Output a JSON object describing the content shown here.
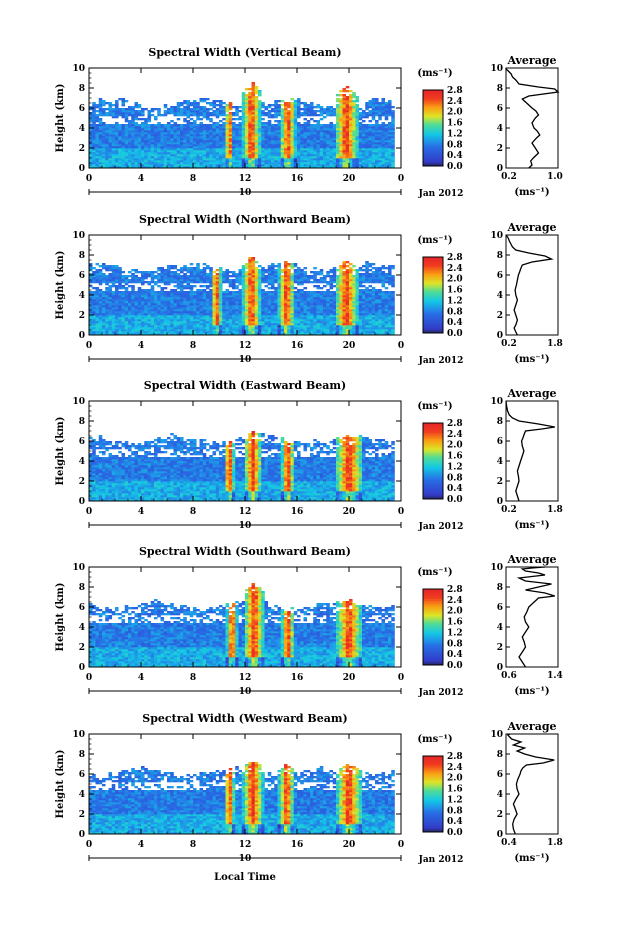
{
  "figure": {
    "xlabel": "Local Time",
    "date_label": "Jan 2012",
    "day_label": "10",
    "colorbar_unit_label": "(ms⁻¹)",
    "colorbar_ticks": [
      "0.0",
      "0.4",
      "0.8",
      "1.2",
      "1.6",
      "2.0",
      "2.4",
      "2.8"
    ],
    "profile_unit_label": "(ms⁻¹)"
  },
  "chart_data": [
    {
      "type": "heatmap",
      "title": "Spectral Width (Vertical Beam)",
      "ylabel": "Height (km)",
      "x_ticks": [
        "0",
        "4",
        "8",
        "12",
        "16",
        "20",
        "0"
      ],
      "y_ticks": [
        "0",
        "2",
        "4",
        "6",
        "8",
        "10"
      ],
      "xlim": [
        0,
        24
      ],
      "ylim": [
        0,
        10
      ],
      "colorscale_range": [
        0,
        2.8
      ],
      "storms": [
        {
          "t": 10.8,
          "h": 3.5,
          "w": 0.3
        },
        {
          "t": 12.5,
          "h": 8.8,
          "w": 0.7
        },
        {
          "t": 15.3,
          "h": 6.2,
          "w": 0.6
        },
        {
          "t": 19.8,
          "h": 8.2,
          "w": 0.9
        }
      ],
      "top_km": 6.5
    },
    {
      "type": "heatmap",
      "title": "Spectral Width (Northward Beam)",
      "ylabel": "Height (km)",
      "x_ticks": [
        "0",
        "4",
        "8",
        "12",
        "16",
        "20",
        "0"
      ],
      "y_ticks": [
        "0",
        "2",
        "4",
        "6",
        "8",
        "10"
      ],
      "xlim": [
        0,
        24
      ],
      "ylim": [
        0,
        10
      ],
      "colorscale_range": [
        0,
        2.8
      ],
      "storms": [
        {
          "t": 9.8,
          "h": 3.5,
          "w": 0.4
        },
        {
          "t": 12.5,
          "h": 8.0,
          "w": 0.7
        },
        {
          "t": 15.2,
          "h": 4.5,
          "w": 0.6
        },
        {
          "t": 19.8,
          "h": 7.5,
          "w": 0.9
        }
      ],
      "top_km": 6.8
    },
    {
      "type": "heatmap",
      "title": "Spectral Width (Eastward Beam)",
      "ylabel": "Height (km)",
      "x_ticks": [
        "0",
        "4",
        "8",
        "12",
        "16",
        "20",
        "0"
      ],
      "y_ticks": [
        "0",
        "2",
        "4",
        "6",
        "8",
        "10"
      ],
      "xlim": [
        0,
        24
      ],
      "ylim": [
        0,
        10
      ],
      "colorscale_range": [
        0,
        2.8
      ],
      "storms": [
        {
          "t": 10.8,
          "h": 3.0,
          "w": 0.4
        },
        {
          "t": 12.6,
          "h": 7.0,
          "w": 0.7
        },
        {
          "t": 15.3,
          "h": 4.3,
          "w": 0.5
        },
        {
          "t": 20.0,
          "h": 6.5,
          "w": 1.1
        }
      ],
      "top_km": 6.2
    },
    {
      "type": "heatmap",
      "title": "Spectral Width (Southward Beam)",
      "ylabel": "Height (km)",
      "x_ticks": [
        "0",
        "4",
        "8",
        "12",
        "16",
        "20",
        "0"
      ],
      "y_ticks": [
        "0",
        "2",
        "4",
        "6",
        "8",
        "10"
      ],
      "xlim": [
        0,
        24
      ],
      "ylim": [
        0,
        10
      ],
      "colorscale_range": [
        0,
        2.8
      ],
      "storms": [
        {
          "t": 11.0,
          "h": 3.5,
          "w": 0.4
        },
        {
          "t": 12.7,
          "h": 8.5,
          "w": 0.8
        },
        {
          "t": 15.3,
          "h": 5.5,
          "w": 0.5
        },
        {
          "t": 20.0,
          "h": 7.0,
          "w": 1.0
        }
      ],
      "top_km": 6.2
    },
    {
      "type": "heatmap",
      "title": "Spectral Width (Westward Beam)",
      "ylabel": "Height (km)",
      "x_ticks": [
        "0",
        "4",
        "8",
        "12",
        "16",
        "20",
        "0"
      ],
      "y_ticks": [
        "0",
        "2",
        "4",
        "6",
        "8",
        "10"
      ],
      "xlim": [
        0,
        24
      ],
      "ylim": [
        0,
        10
      ],
      "colorscale_range": [
        0,
        2.8
      ],
      "storms": [
        {
          "t": 10.8,
          "h": 4.0,
          "w": 0.4
        },
        {
          "t": 12.6,
          "h": 7.5,
          "w": 0.8
        },
        {
          "t": 15.2,
          "h": 7.2,
          "w": 0.6
        },
        {
          "t": 20.0,
          "h": 7.2,
          "w": 1.0
        }
      ],
      "top_km": 6.2
    },
    {
      "type": "line",
      "title": "Average",
      "x_ticks": [
        "0.2",
        "1.0"
      ],
      "xlim": [
        0.2,
        1.0
      ],
      "ylim": [
        0,
        10
      ],
      "y_ticks": [
        "0",
        "2",
        "4",
        "6",
        "8",
        "10"
      ],
      "x": [
        0.55,
        0.6,
        0.58,
        0.62,
        0.7,
        0.65,
        0.6,
        0.67,
        0.72,
        0.68,
        0.63,
        0.6,
        0.65,
        0.7,
        0.66,
        0.6,
        0.55,
        0.5,
        0.45,
        0.55,
        1.0,
        0.95,
        0.7,
        0.4,
        0.35,
        0.3,
        0.28,
        0.25,
        0.22,
        0.2,
        0.2
      ],
      "y": [
        0,
        0.3,
        0.7,
        1,
        1.5,
        2,
        2.5,
        3,
        3.3,
        3.7,
        4,
        4.5,
        5,
        5.3,
        5.7,
        6,
        6.3,
        6.6,
        6.9,
        7.2,
        7.6,
        7.9,
        8.1,
        8.4,
        8.8,
        9.1,
        9.4,
        9.6,
        9.8,
        9.9,
        10
      ]
    },
    {
      "type": "line",
      "title": "Average",
      "x_ticks": [
        "0.2",
        "1.8"
      ],
      "xlim": [
        0.2,
        1.8
      ],
      "ylim": [
        0,
        10
      ],
      "y_ticks": [
        "0",
        "2",
        "4",
        "6",
        "8",
        "10"
      ],
      "x": [
        0.55,
        0.5,
        0.45,
        0.5,
        0.55,
        0.5,
        0.45,
        0.5,
        0.55,
        0.5,
        0.48,
        0.52,
        0.55,
        0.58,
        0.62,
        0.65,
        0.7,
        1.0,
        1.6,
        1.4,
        0.9,
        0.5,
        0.4,
        0.35,
        0.3,
        0.28,
        0.25,
        0.22,
        0.2
      ],
      "y": [
        0,
        0.3,
        0.7,
        1,
        1.5,
        2,
        2.5,
        3,
        3.5,
        4,
        4.5,
        5,
        5.5,
        6,
        6.3,
        6.6,
        7,
        7.3,
        7.6,
        7.9,
        8.2,
        8.5,
        8.8,
        9.1,
        9.4,
        9.6,
        9.8,
        9.9,
        10
      ]
    },
    {
      "type": "line",
      "title": "Average",
      "x_ticks": [
        "0.2",
        "1.8"
      ],
      "xlim": [
        0.2,
        1.8
      ],
      "ylim": [
        0,
        10
      ],
      "y_ticks": [
        "0",
        "2",
        "4",
        "6",
        "8",
        "10"
      ],
      "x": [
        0.6,
        0.55,
        0.5,
        0.55,
        0.6,
        0.58,
        0.55,
        0.6,
        0.65,
        0.7,
        0.75,
        0.7,
        0.68,
        0.72,
        0.75,
        0.8,
        1.3,
        1.7,
        1.2,
        0.6,
        0.4,
        0.3,
        0.25,
        0.22,
        0.2
      ],
      "y": [
        0,
        0.5,
        1,
        1.5,
        2,
        2.5,
        3,
        3.5,
        4,
        4.5,
        5,
        5.5,
        6,
        6.3,
        6.6,
        7,
        7.2,
        7.4,
        7.7,
        8,
        8.3,
        8.6,
        9,
        9.5,
        10
      ]
    },
    {
      "type": "line",
      "title": "Average",
      "x_ticks": [
        "0.6",
        "1.4"
      ],
      "xlim": [
        0.6,
        1.4
      ],
      "ylim": [
        0,
        10
      ],
      "y_ticks": [
        "0",
        "2",
        "4",
        "6",
        "8",
        "10"
      ],
      "x": [
        0.9,
        0.85,
        0.8,
        0.85,
        0.9,
        0.88,
        0.85,
        0.9,
        0.95,
        0.9,
        0.88,
        0.92,
        0.95,
        1.0,
        1.05,
        1.1,
        1.35,
        1.2,
        0.9,
        1.1,
        1.3,
        0.9,
        0.8,
        1.2,
        1.1,
        0.9,
        0.85,
        1.0,
        1.2
      ],
      "y": [
        0,
        0.5,
        1,
        1.5,
        2,
        2.5,
        3,
        3.5,
        4,
        4.5,
        5,
        5.5,
        6,
        6.3,
        6.6,
        6.9,
        7.1,
        7.4,
        7.7,
        8,
        8.3,
        8.6,
        8.9,
        9.2,
        9.4,
        9.6,
        9.8,
        9.9,
        10
      ]
    },
    {
      "type": "line",
      "title": "Average",
      "x_ticks": [
        "0.4",
        "1.8"
      ],
      "xlim": [
        0.4,
        1.8
      ],
      "ylim": [
        0,
        10
      ],
      "y_ticks": [
        "0",
        "2",
        "4",
        "6",
        "8",
        "10"
      ],
      "x": [
        0.65,
        0.6,
        0.58,
        0.62,
        0.7,
        0.65,
        0.6,
        0.67,
        0.75,
        0.7,
        0.68,
        0.72,
        0.78,
        0.8,
        0.85,
        0.95,
        1.4,
        1.7,
        1.2,
        0.9,
        0.7,
        0.9,
        0.6,
        0.8,
        0.55,
        0.5,
        0.45,
        0.5
      ],
      "y": [
        0,
        0.5,
        1,
        1.5,
        2,
        2.5,
        3,
        3.5,
        4,
        4.5,
        5,
        5.5,
        6,
        6.3,
        6.6,
        6.9,
        7.1,
        7.4,
        7.7,
        8,
        8.3,
        8.6,
        8.9,
        9.2,
        9.5,
        9.7,
        9.9,
        10
      ]
    }
  ]
}
